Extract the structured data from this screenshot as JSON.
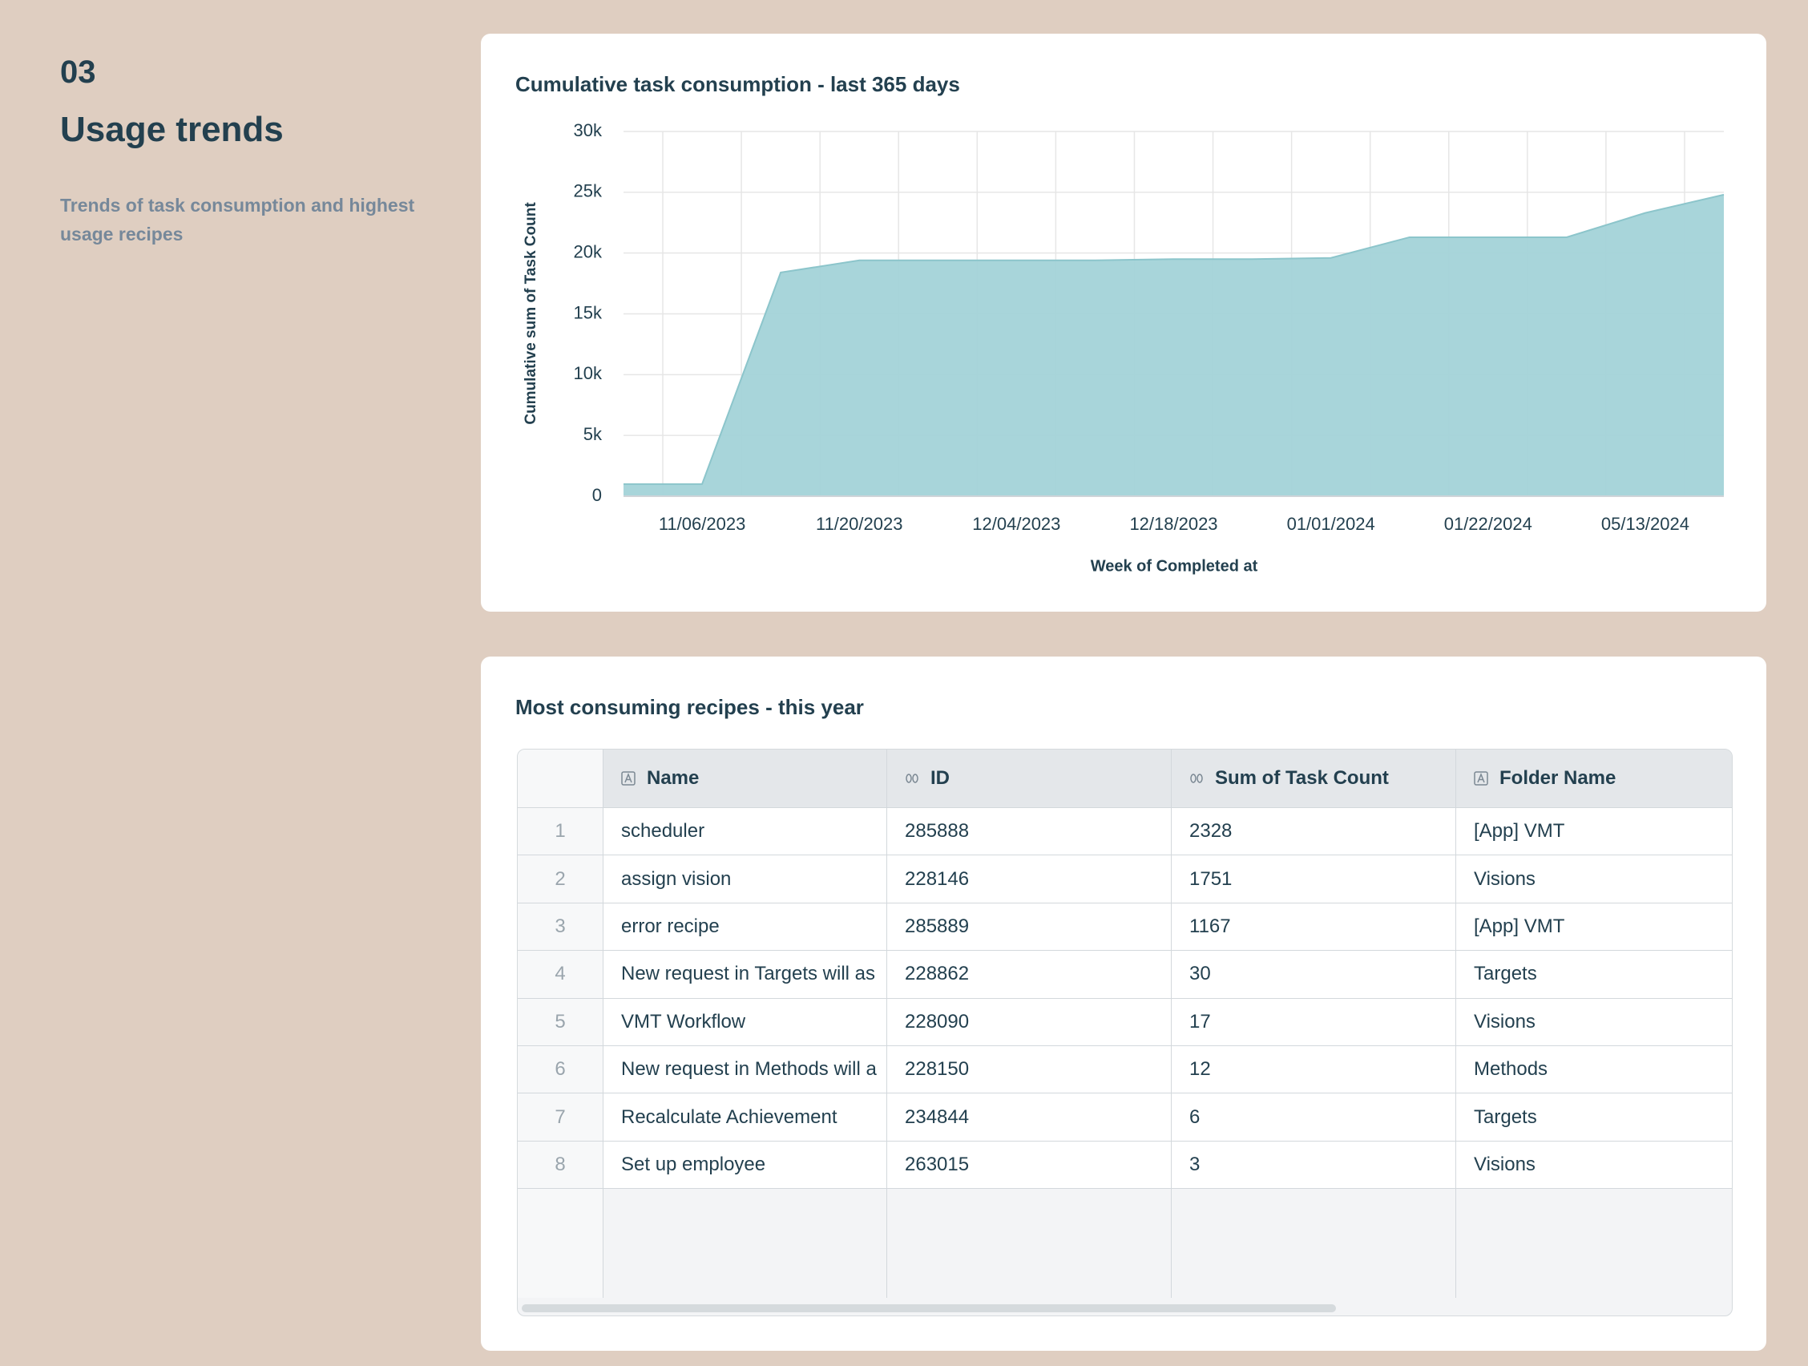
{
  "section": {
    "number": "03",
    "title": "Usage trends",
    "description": "Trends of task consumption and highest usage recipes"
  },
  "chart_data": {
    "type": "area",
    "title": "Cumulative task consumption - last 365 days",
    "x_label": "Week of Completed at",
    "y_label": "Cumulative sum of Task Count",
    "categories": [
      null,
      "11/06/2023",
      null,
      "11/20/2023",
      null,
      "12/04/2023",
      null,
      "12/18/2023",
      null,
      "01/01/2024",
      null,
      "01/22/2024",
      null,
      "05/13/2024",
      null
    ],
    "values": [
      1000,
      1000,
      18400,
      19400,
      19400,
      19400,
      19400,
      19500,
      19500,
      19600,
      21300,
      21300,
      21300,
      23300,
      24800
    ],
    "color": "#a3d3d8",
    "ylim": [
      0,
      30000
    ],
    "yticks": [
      0,
      {
        "value": 5000,
        "label": "5k"
      },
      {
        "value": 10000,
        "label": "10k"
      },
      {
        "value": 15000,
        "label": "15k"
      },
      {
        "value": 20000,
        "label": "20k"
      },
      {
        "value": 25000,
        "label": "25k"
      },
      {
        "value": 30000,
        "label": "30k"
      }
    ],
    "grid": true
  },
  "table": {
    "title": "Most consuming recipes - this year",
    "columns": [
      "Name",
      "ID",
      "Sum of Task Count",
      "Folder Name"
    ],
    "rows": [
      [
        1,
        "scheduler",
        285888,
        2328,
        "[App] VMT"
      ],
      [
        2,
        "assign vision",
        228146,
        1751,
        "Visions"
      ],
      [
        3,
        "error recipe",
        285889,
        1167,
        "[App] VMT"
      ],
      [
        4,
        "New request in Targets will as",
        228862,
        30,
        "Targets"
      ],
      [
        5,
        "VMT Workflow",
        228090,
        17,
        "Visions"
      ],
      [
        6,
        "New request in Methods will a",
        228150,
        12,
        "Methods"
      ],
      [
        7,
        "Recalculate Achievement",
        234844,
        6,
        "Targets"
      ],
      [
        8,
        "Set up employee",
        263015,
        3,
        "Visions"
      ]
    ]
  }
}
